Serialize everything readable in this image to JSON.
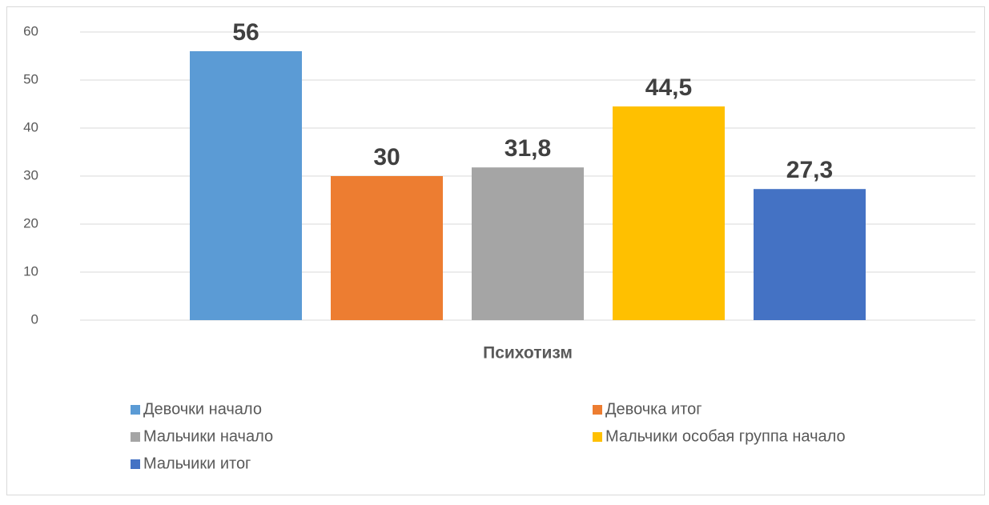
{
  "chart_data": {
    "type": "bar",
    "categories": [
      "Психотизм"
    ],
    "series": [
      {
        "name": "Девочки начало",
        "color": "#5b9bd5",
        "values": [
          56
        ]
      },
      {
        "name": "Девочка итог",
        "color": "#ed7d31",
        "values": [
          30
        ]
      },
      {
        "name": "Мальчики начало",
        "color": "#a5a5a5",
        "values": [
          31.8
        ],
        "value_labels": [
          "31,8"
        ]
      },
      {
        "name": "Мальчики особая группа начало",
        "color": "#ffc000",
        "values": [
          44.5
        ],
        "value_labels": [
          "44,5"
        ]
      },
      {
        "name": "Мальчики итог",
        "color": "#4472c4",
        "values": [
          27.3
        ],
        "value_labels": [
          "27,3"
        ]
      }
    ],
    "ylim": [
      0,
      60
    ],
    "yticks": [
      0,
      10,
      20,
      30,
      40,
      50,
      60
    ],
    "grid": true,
    "legend": "bottom"
  }
}
